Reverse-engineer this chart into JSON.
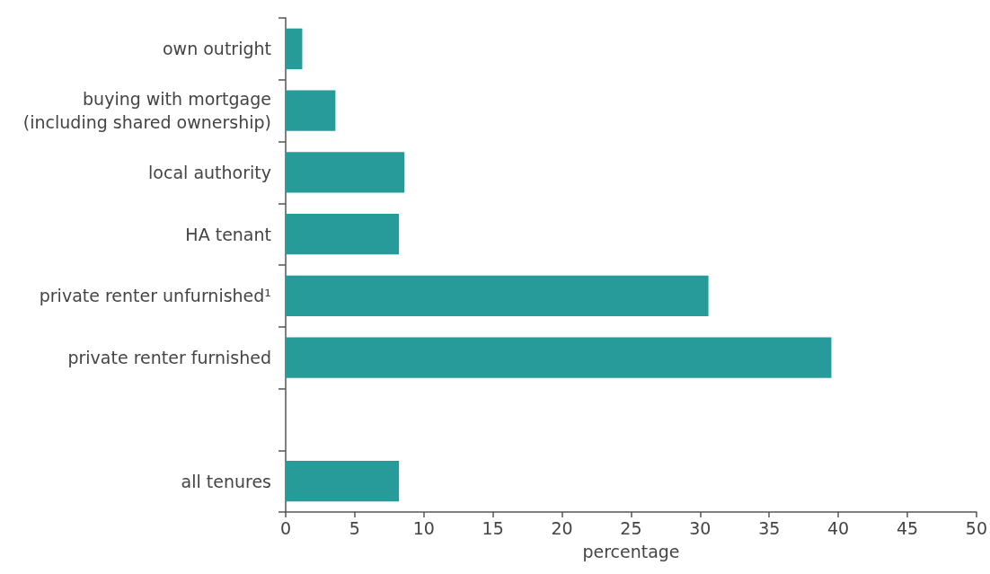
{
  "chart_data": {
    "type": "bar",
    "orientation": "horizontal",
    "xlabel": "percentage",
    "categories": [
      "own outright",
      "buying with mortgage\n(including shared ownership)",
      "local authority",
      "HA tenant",
      "private renter unfurnished¹",
      "private renter furnished",
      null,
      "all tenures"
    ],
    "values": [
      1.2,
      3.6,
      8.6,
      8.2,
      30.6,
      39.5,
      null,
      8.2
    ],
    "color": "#279b9a",
    "xlim": [
      0,
      50
    ],
    "xticks": [
      0,
      5,
      10,
      15,
      20,
      25,
      30,
      35,
      40,
      45,
      50
    ],
    "grid": false
  }
}
